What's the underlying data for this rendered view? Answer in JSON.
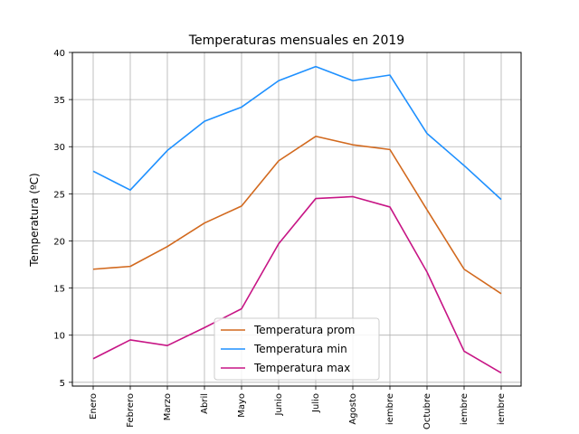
{
  "chart_data": {
    "type": "line",
    "title": "Temperaturas mensuales en 2019",
    "xlabel": "",
    "ylabel": "Temperatura (ºC)",
    "ylim": [
      4.6,
      40
    ],
    "yticks": [
      5,
      10,
      15,
      20,
      25,
      30,
      35,
      40
    ],
    "grid": true,
    "legend_position": "bottom-center",
    "categories": [
      "Enero",
      "Febrero",
      "Marzo",
      "Abril",
      "Mayo",
      "Junio",
      "Julio",
      "Agosto",
      "Septiembre",
      "Octubre",
      "Noviembre",
      "Diciembre"
    ],
    "category_labels_visible": [
      "Enero",
      "Febrero",
      "Marzo",
      "Abril",
      "Mayo",
      "Junio",
      "Julio",
      "Agosto",
      "iembre",
      "Octubre",
      "iembre",
      "iembre"
    ],
    "series": [
      {
        "name": "Temperatura prom",
        "color": "#d2691e",
        "values": [
          17.0,
          17.3,
          19.4,
          21.9,
          23.7,
          28.5,
          31.1,
          30.2,
          29.7,
          23.3,
          17.0,
          14.4
        ]
      },
      {
        "name": "Temperatura min",
        "color": "#1e90ff",
        "values": [
          27.4,
          25.4,
          29.6,
          32.7,
          34.2,
          37.0,
          38.5,
          37.0,
          37.6,
          31.4,
          28.0,
          24.4
        ]
      },
      {
        "name": "Temperatura max",
        "color": "#c71585",
        "values": [
          7.5,
          9.5,
          8.9,
          10.8,
          12.8,
          19.7,
          24.5,
          24.7,
          23.6,
          16.7,
          8.3,
          6.0
        ]
      }
    ]
  }
}
